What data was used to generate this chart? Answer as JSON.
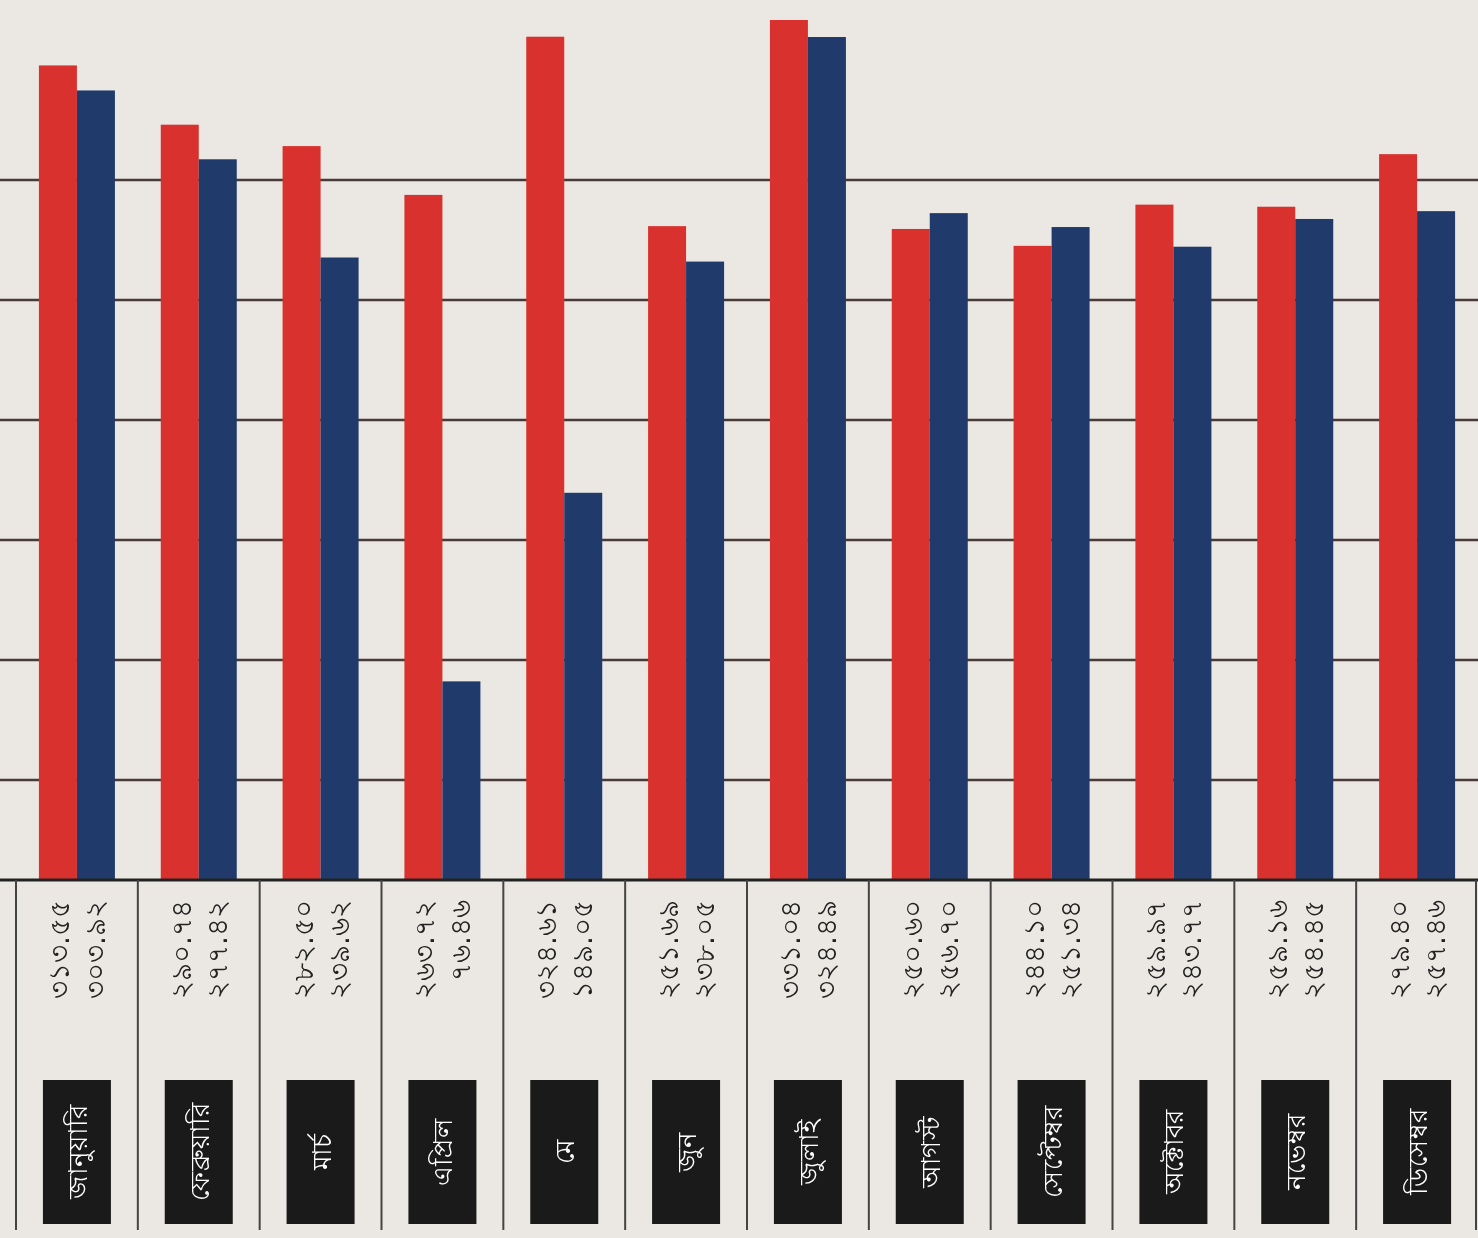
{
  "chart_data": {
    "type": "bar",
    "categories": [
      "জানুয়ারি",
      "ফেব্রুয়ারি",
      "মার্চ",
      "এপ্রিল",
      "মে",
      "জুন",
      "জুলাই",
      "আগস্ট",
      "সেপ্টেম্বর",
      "অক্টোবর",
      "নভেম্বর",
      "ডিসেম্বর"
    ],
    "series": [
      {
        "color": "#d8312e",
        "values": [
          313.55,
          290.74,
          282.5,
          263.72,
          324.61,
          251.69,
          331.04,
          250.6,
          244.1,
          259.97,
          259.16,
          279.4
        ],
        "value_labels": [
          "৩১৩.৫৫",
          "২৯০.৭৪",
          "২৮২.৫০",
          "২৬৩.৭২",
          "৩২৪.৬১",
          "২৫১.৬৯",
          "৩৩১.০৪",
          "২৫০.৬০",
          "২৪৪.১০",
          "২৫৯.৯৭",
          "২৫৯.১৬",
          "২৭৯.৪০"
        ]
      },
      {
        "color": "#1f3a6b",
        "values": [
          303.92,
          277.42,
          239.62,
          76.46,
          149.05,
          238.05,
          324.49,
          256.7,
          251.34,
          243.77,
          254.45,
          257.46
        ],
        "value_labels": [
          "৩০৩.৯২",
          "২৭৭.৪২",
          "২৩৯.৬২",
          "৭৬.৪৬",
          "১৪৯.০৫",
          "২৩৮.০৫",
          "৩২৪.৪৯",
          "২৫৬.৭০",
          "২৫১.৩৪",
          "২৪৩.৭৭",
          "২৫৪.৪৫",
          "২৫৭.৪৬"
        ]
      }
    ],
    "grid": true
  }
}
